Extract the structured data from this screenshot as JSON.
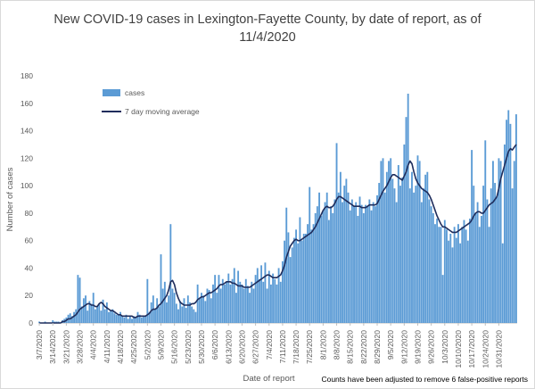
{
  "chart_data": {
    "type": "bar",
    "title": "New COVID-19 cases in Lexington-Fayette County, by date of report, as of 11/4/2020",
    "xlabel": "Date of report",
    "ylabel": "Number of cases",
    "ylim": [
      0,
      180
    ],
    "yticks": [
      0,
      20,
      40,
      60,
      80,
      100,
      120,
      140,
      160,
      180
    ],
    "x_start_date": "3/7/2020",
    "xticks": [
      "3/7/2020",
      "3/14/2020",
      "3/21/2020",
      "3/28/2020",
      "4/4/2020",
      "4/11/2020",
      "4/18/2020",
      "4/25/2020",
      "5/2/2020",
      "5/9/2020",
      "5/16/2020",
      "5/23/2020",
      "5/30/2020",
      "6/6/2020",
      "6/13/2020",
      "6/20/2020",
      "6/27/2020",
      "7/4/2020",
      "7/11/2020",
      "7/18/2020",
      "7/25/2020",
      "8/1/2020",
      "8/8/2020",
      "8/15/2020",
      "8/22/2020",
      "8/29/2020",
      "9/5/2020",
      "9/12/2020",
      "9/19/2020",
      "9/26/2020",
      "10/3/2020",
      "10/10/2020",
      "10/17/2020",
      "10/24/2020",
      "10/31/2020"
    ],
    "grid": false,
    "legend_position": "top-left",
    "series": [
      {
        "name": "cases",
        "kind": "bar",
        "color": "#5b9bd5",
        "values": [
          1,
          0,
          0,
          1,
          0,
          0,
          0,
          2,
          1,
          1,
          1,
          0,
          2,
          3,
          4,
          6,
          7,
          5,
          8,
          10,
          35,
          33,
          12,
          18,
          20,
          9,
          16,
          14,
          22,
          10,
          12,
          14,
          9,
          17,
          10,
          15,
          8,
          9,
          10,
          7,
          6,
          6,
          8,
          5,
          4,
          6,
          3,
          5,
          3,
          5,
          4,
          8,
          6,
          4,
          5,
          5,
          32,
          8,
          15,
          20,
          10,
          18,
          12,
          50,
          25,
          30,
          15,
          20,
          72,
          25,
          22,
          14,
          10,
          16,
          12,
          18,
          11,
          20,
          15,
          12,
          10,
          8,
          28,
          18,
          22,
          20,
          16,
          25,
          24,
          18,
          28,
          35,
          22,
          35,
          25,
          32,
          28,
          30,
          36,
          28,
          32,
          40,
          22,
          38,
          30,
          28,
          25,
          32,
          27,
          22,
          30,
          25,
          35,
          40,
          32,
          42,
          30,
          44,
          25,
          38,
          28,
          36,
          32,
          28,
          40,
          30,
          45,
          60,
          84,
          66,
          48,
          55,
          62,
          68,
          58,
          77,
          60,
          65,
          65,
          72,
          99,
          68,
          72,
          80,
          85,
          95,
          78,
          82,
          88,
          95,
          75,
          85,
          80,
          90,
          131,
          95,
          110,
          88,
          100,
          105,
          95,
          82,
          90,
          85,
          88,
          78,
          92,
          86,
          80,
          86,
          85,
          90,
          82,
          88,
          85,
          93,
          102,
          118,
          120,
          95,
          110,
          118,
          120,
          105,
          98,
          88,
          115,
          100,
          106,
          130,
          150,
          167,
          98,
          110,
          95,
          100,
          122,
          118,
          88,
          98,
          108,
          110,
          90,
          85,
          80,
          72,
          76,
          70,
          70,
          35,
          75,
          68,
          60,
          65,
          55,
          70,
          62,
          72,
          58,
          70,
          75,
          68,
          60,
          76,
          126,
          100,
          80,
          88,
          70,
          78,
          100,
          133,
          90,
          70,
          98,
          118,
          102,
          92,
          120,
          118,
          58,
          130,
          148,
          155,
          145,
          98,
          118,
          152
        ]
      },
      {
        "name": "7 day moving average",
        "kind": "line",
        "color": "#1f2d5c",
        "values": [
          0,
          0,
          0,
          0,
          0,
          0,
          0,
          0,
          0,
          0,
          0,
          0,
          1,
          1,
          2,
          3,
          3,
          4,
          5,
          6,
          8,
          10,
          11,
          12,
          13,
          14,
          14,
          13,
          13,
          12,
          12,
          14,
          15,
          14,
          12,
          11,
          10,
          9,
          9,
          8,
          7,
          6,
          6,
          5,
          5,
          5,
          5,
          5,
          5,
          4,
          4,
          5,
          5,
          5,
          5,
          5,
          6,
          7,
          9,
          10,
          10,
          11,
          13,
          14,
          16,
          18,
          20,
          24,
          30,
          31,
          28,
          22,
          18,
          15,
          14,
          13,
          13,
          13,
          13,
          14,
          14,
          15,
          17,
          18,
          19,
          19,
          20,
          21,
          22,
          22,
          23,
          24,
          25,
          27,
          28,
          28,
          29,
          30,
          30,
          30,
          29,
          29,
          28,
          27,
          27,
          27,
          26,
          26,
          26,
          26,
          27,
          28,
          29,
          30,
          31,
          32,
          33,
          34,
          35,
          35,
          34,
          33,
          33,
          33,
          34,
          35,
          38,
          42,
          48,
          52,
          56,
          58,
          60,
          61,
          60,
          60,
          61,
          62,
          63,
          64,
          65,
          66,
          68,
          70,
          73,
          76,
          79,
          82,
          84,
          85,
          84,
          84,
          85,
          87,
          90,
          92,
          92,
          91,
          90,
          89,
          88,
          87,
          86,
          85,
          85,
          85,
          85,
          84,
          84,
          84,
          85,
          86,
          86,
          86,
          86,
          87,
          90,
          93,
          96,
          98,
          100,
          103,
          106,
          108,
          108,
          107,
          106,
          105,
          104,
          107,
          110,
          115,
          118,
          116,
          110,
          105,
          102,
          100,
          98,
          97,
          96,
          95,
          93,
          90,
          86,
          82,
          78,
          75,
          72,
          70,
          70,
          69,
          68,
          67,
          66,
          66,
          66,
          67,
          68,
          69,
          70,
          71,
          72,
          73,
          75,
          78,
          80,
          81,
          81,
          80,
          80,
          82,
          84,
          86,
          87,
          88,
          90,
          92,
          98,
          105,
          110,
          115,
          120,
          125,
          127,
          126,
          128,
          130
        ]
      }
    ]
  },
  "footnote": "Counts have been adjusted to remove 6 false-positive reports"
}
